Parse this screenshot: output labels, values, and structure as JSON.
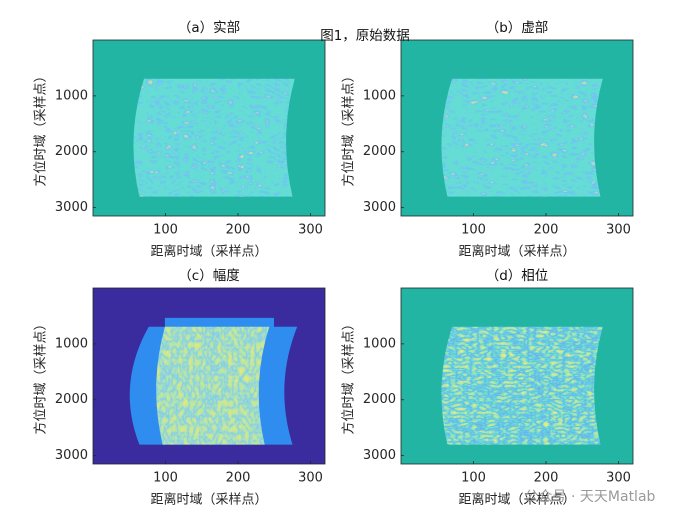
{
  "figure_title": "图1，原始数据",
  "watermark": "公众号 · 天天Matlab",
  "chart_data": [
    {
      "type": "image",
      "title": "（a）实部",
      "xlabel": "距离时域（采样点）",
      "ylabel": "方位时域（采样点）",
      "xlim": [
        0,
        320
      ],
      "ylim": [
        0,
        3150
      ],
      "xticks": [
        100,
        200,
        300
      ],
      "yticks": [
        1000,
        2000,
        3000
      ],
      "y_reversed": true
    },
    {
      "type": "image",
      "title": "（b）虚部",
      "xlabel": "距离时域（采样点）",
      "ylabel": "方位时域（采样点）",
      "xlim": [
        0,
        320
      ],
      "ylim": [
        0,
        3150
      ],
      "xticks": [
        100,
        200,
        300
      ],
      "yticks": [
        1000,
        2000,
        3000
      ],
      "y_reversed": true
    },
    {
      "type": "image",
      "title": "（c）幅度",
      "xlabel": "距离时域（采样点）",
      "ylabel": "方位时域（采样点）",
      "xlim": [
        0,
        320
      ],
      "ylim": [
        0,
        3150
      ],
      "xticks": [
        100,
        200,
        300
      ],
      "yticks": [
        1000,
        2000,
        3000
      ],
      "y_reversed": true
    },
    {
      "type": "image",
      "title": "（d）相位",
      "xlabel": "距离时域（采样点）",
      "ylabel": "方位时域（采样点）",
      "xlim": [
        0,
        320
      ],
      "ylim": [
        0,
        3150
      ],
      "xticks": [
        100,
        200,
        300
      ],
      "yticks": [
        1000,
        2000,
        3000
      ],
      "y_reversed": true
    }
  ]
}
